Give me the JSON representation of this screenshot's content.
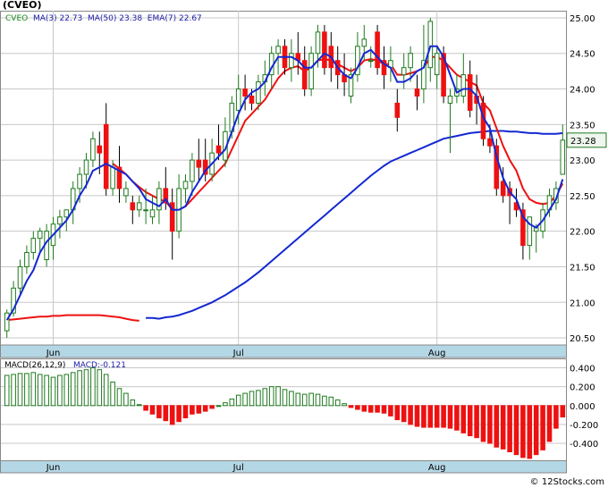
{
  "header": {
    "symbol_label": "(CVEO)",
    "legend_sym": "CVEO",
    "legend_ma3": "MA(3)",
    "legend_ma3_val": "22.73",
    "legend_ma50": "MA(50)",
    "legend_ma50_val": "23.38",
    "legend_ema7": "EMA(7)",
    "legend_ema7_val": "22.67",
    "macd_label": "MACD(26,12,9)",
    "macd_value": "MACD:-0.121",
    "last_price": "23.28",
    "copyright": "© 12Stocks.com"
  },
  "chart_data": [
    {
      "type": "candlestick",
      "ylim": [
        20.4,
        25.1
      ],
      "y_ticks": [
        "25.00",
        "24.50",
        "24.00",
        "23.50",
        "23.00",
        "22.50",
        "22.00",
        "21.50",
        "21.00",
        "20.50"
      ],
      "x_tick_labels": [
        "Jun",
        "Jul",
        "Aug"
      ],
      "x_tick_index": [
        7,
        35,
        65
      ],
      "colors": {
        "up": "#ffffff",
        "up_stroke": "#1f7a1f",
        "down": "#ee1111",
        "ma_short": "#1428d2",
        "ema": "#ee1111",
        "ma50": "#1428d2",
        "grid": "#c8c8c8",
        "band": "#b4d7e6"
      },
      "candles": [
        [
          20.6,
          20.9,
          20.5,
          20.85
        ],
        [
          20.85,
          21.3,
          20.8,
          21.2
        ],
        [
          21.2,
          21.6,
          21.1,
          21.5
        ],
        [
          21.5,
          21.8,
          21.4,
          21.7
        ],
        [
          21.7,
          22.0,
          21.6,
          21.9
        ],
        [
          21.9,
          22.05,
          21.7,
          22.0
        ],
        [
          21.6,
          22.1,
          21.5,
          22.0
        ],
        [
          21.8,
          22.2,
          21.6,
          22.1
        ],
        [
          22.1,
          22.3,
          21.9,
          22.2
        ],
        [
          22.2,
          22.3,
          22.0,
          22.3
        ],
        [
          22.3,
          22.7,
          22.1,
          22.6
        ],
        [
          22.6,
          22.9,
          22.4,
          22.8
        ],
        [
          22.8,
          23.1,
          22.6,
          23.0
        ],
        [
          23.0,
          23.4,
          22.9,
          23.3
        ],
        [
          23.2,
          23.4,
          22.8,
          23.1
        ],
        [
          23.5,
          23.8,
          22.5,
          22.6
        ],
        [
          22.6,
          23.0,
          22.5,
          22.9
        ],
        [
          22.9,
          23.2,
          22.4,
          22.6
        ],
        [
          22.5,
          22.7,
          22.4,
          22.6
        ],
        [
          22.4,
          22.5,
          22.1,
          22.3
        ],
        [
          22.3,
          22.5,
          22.2,
          22.4
        ],
        [
          22.3,
          22.6,
          22.1,
          22.3
        ],
        [
          22.2,
          22.5,
          22.1,
          22.3
        ],
        [
          22.3,
          22.7,
          22.1,
          22.6
        ],
        [
          22.6,
          22.9,
          22.3,
          22.4
        ],
        [
          22.4,
          22.6,
          21.6,
          22.0
        ],
        [
          22.0,
          22.8,
          21.9,
          22.6
        ],
        [
          22.6,
          22.8,
          22.4,
          22.7
        ],
        [
          22.7,
          23.1,
          22.5,
          23.0
        ],
        [
          23.0,
          23.3,
          22.7,
          22.9
        ],
        [
          23.0,
          23.3,
          22.7,
          22.8
        ],
        [
          22.8,
          23.3,
          22.7,
          23.1
        ],
        [
          23.2,
          23.5,
          23.0,
          23.1
        ],
        [
          23.0,
          23.6,
          22.9,
          23.4
        ],
        [
          23.4,
          23.9,
          23.3,
          23.8
        ],
        [
          23.7,
          24.2,
          23.5,
          24.0
        ],
        [
          24.0,
          24.2,
          23.7,
          23.9
        ],
        [
          23.9,
          24.0,
          23.7,
          23.8
        ],
        [
          23.8,
          24.2,
          23.7,
          24.1
        ],
        [
          24.1,
          24.4,
          23.9,
          24.2
        ],
        [
          24.2,
          24.6,
          24.0,
          24.5
        ],
        [
          24.5,
          24.7,
          24.2,
          24.6
        ],
        [
          24.6,
          24.7,
          24.2,
          24.3
        ],
        [
          24.3,
          24.7,
          24.1,
          24.5
        ],
        [
          24.5,
          24.8,
          24.2,
          24.4
        ],
        [
          24.4,
          24.6,
          23.9,
          24.0
        ],
        [
          24.0,
          24.6,
          23.9,
          24.5
        ],
        [
          24.5,
          24.9,
          24.3,
          24.8
        ],
        [
          24.8,
          24.9,
          24.2,
          24.3
        ],
        [
          24.6,
          24.8,
          24.1,
          24.3
        ],
        [
          24.4,
          24.6,
          24.0,
          24.2
        ],
        [
          24.2,
          24.5,
          23.9,
          24.1
        ],
        [
          23.9,
          24.3,
          23.8,
          24.2
        ],
        [
          24.2,
          24.8,
          24.1,
          24.6
        ],
        [
          24.6,
          24.9,
          24.4,
          24.7
        ],
        [
          24.4,
          24.6,
          24.3,
          24.4
        ],
        [
          24.8,
          24.9,
          24.2,
          24.3
        ],
        [
          24.4,
          24.6,
          24.0,
          24.2
        ],
        [
          24.3,
          24.6,
          24.1,
          24.4
        ],
        [
          23.8,
          24.0,
          23.4,
          23.6
        ],
        [
          24.2,
          24.5,
          24.0,
          24.3
        ],
        [
          24.3,
          24.6,
          24.1,
          24.5
        ],
        [
          24.0,
          24.2,
          23.7,
          23.9
        ],
        [
          24.0,
          24.9,
          23.8,
          24.4
        ],
        [
          24.3,
          25.0,
          24.1,
          24.95
        ],
        [
          24.2,
          24.6,
          24.0,
          24.5
        ],
        [
          24.5,
          24.6,
          23.8,
          23.9
        ],
        [
          23.8,
          24.0,
          23.1,
          23.9
        ],
        [
          23.9,
          24.2,
          23.8,
          24.0
        ],
        [
          23.9,
          24.5,
          23.8,
          24.2
        ],
        [
          24.2,
          24.4,
          23.6,
          23.7
        ],
        [
          23.9,
          24.2,
          23.5,
          23.8
        ],
        [
          23.8,
          23.9,
          23.2,
          23.3
        ],
        [
          23.3,
          23.5,
          23.1,
          23.2
        ],
        [
          23.2,
          23.3,
          22.5,
          22.6
        ],
        [
          22.7,
          22.9,
          22.4,
          22.5
        ],
        [
          22.6,
          22.7,
          22.1,
          22.5
        ],
        [
          22.4,
          22.6,
          22.2,
          22.3
        ],
        [
          22.3,
          22.4,
          21.6,
          21.8
        ],
        [
          21.8,
          22.2,
          21.6,
          22.2
        ],
        [
          22.0,
          22.1,
          21.7,
          22.05
        ],
        [
          22.0,
          22.4,
          21.9,
          22.3
        ],
        [
          22.3,
          22.6,
          22.2,
          22.5
        ],
        [
          22.4,
          22.7,
          22.3,
          22.6
        ],
        [
          22.8,
          23.5,
          22.8,
          23.28
        ]
      ],
      "ma3": [
        20.75,
        20.9,
        21.1,
        21.3,
        21.45,
        21.7,
        21.85,
        21.95,
        22.05,
        22.15,
        22.3,
        22.5,
        22.65,
        22.85,
        22.9,
        22.95,
        22.9,
        22.85,
        22.8,
        22.7,
        22.6,
        22.45,
        22.4,
        22.35,
        22.45,
        22.3,
        22.3,
        22.35,
        22.55,
        22.7,
        22.85,
        22.95,
        23.05,
        23.15,
        23.4,
        23.65,
        23.85,
        23.95,
        24.0,
        24.1,
        24.3,
        24.45,
        24.45,
        24.45,
        24.4,
        24.3,
        24.3,
        24.4,
        24.5,
        24.45,
        24.3,
        24.2,
        24.15,
        24.3,
        24.5,
        24.55,
        24.45,
        24.35,
        24.3,
        24.1,
        24.1,
        24.15,
        24.25,
        24.3,
        24.6,
        24.6,
        24.45,
        24.2,
        23.95,
        24.0,
        24.0,
        23.9,
        23.6,
        23.45,
        23.05,
        22.75,
        22.55,
        22.45,
        22.2,
        22.1,
        22.05,
        22.15,
        22.3,
        22.45,
        22.73
      ],
      "ema7": [
        null,
        null,
        null,
        null,
        null,
        null,
        null,
        null,
        null,
        null,
        null,
        null,
        null,
        null,
        null,
        null,
        22.95,
        22.88,
        22.8,
        22.7,
        22.62,
        22.55,
        22.5,
        22.45,
        22.42,
        22.3,
        22.3,
        22.35,
        22.45,
        22.55,
        22.65,
        22.75,
        22.85,
        22.95,
        23.15,
        23.35,
        23.55,
        23.65,
        23.75,
        23.85,
        24.0,
        24.15,
        24.25,
        24.3,
        24.32,
        24.25,
        24.3,
        24.4,
        24.42,
        24.4,
        24.35,
        24.3,
        24.25,
        24.3,
        24.4,
        24.42,
        24.4,
        24.35,
        24.35,
        24.2,
        24.2,
        24.22,
        24.25,
        24.3,
        24.45,
        24.45,
        24.4,
        24.3,
        24.2,
        24.15,
        24.1,
        24.05,
        23.8,
        23.7,
        23.45,
        23.2,
        23.0,
        22.85,
        22.6,
        22.45,
        22.4,
        22.38,
        22.4,
        22.5,
        22.67
      ],
      "ma50": [
        null,
        null,
        null,
        null,
        null,
        null,
        null,
        null,
        null,
        null,
        null,
        null,
        null,
        null,
        null,
        null,
        null,
        null,
        null,
        null,
        null,
        20.78,
        20.78,
        20.77,
        20.79,
        20.8,
        20.82,
        20.85,
        20.88,
        20.92,
        20.96,
        21.0,
        21.05,
        21.1,
        21.16,
        21.22,
        21.28,
        21.35,
        21.42,
        21.5,
        21.58,
        21.66,
        21.74,
        21.82,
        21.9,
        21.98,
        22.06,
        22.14,
        22.22,
        22.3,
        22.38,
        22.46,
        22.54,
        22.62,
        22.7,
        22.78,
        22.85,
        22.92,
        22.98,
        23.02,
        23.06,
        23.1,
        23.14,
        23.18,
        23.22,
        23.26,
        23.3,
        23.32,
        23.34,
        23.36,
        23.38,
        23.39,
        23.4,
        23.41,
        23.41,
        23.41,
        23.4,
        23.4,
        23.39,
        23.38,
        23.38,
        23.37,
        23.37,
        23.37,
        23.38
      ],
      "ma50_early": [
        20.75,
        20.76,
        20.77,
        20.78,
        20.79,
        20.8,
        20.8,
        20.81,
        20.81,
        20.82,
        20.82,
        20.82,
        20.82,
        20.82,
        20.82,
        20.81,
        20.8,
        20.79,
        20.77,
        20.75,
        20.74
      ]
    },
    {
      "type": "bar",
      "title": "MACD(26,12,9)",
      "ylim": [
        -0.58,
        0.5
      ],
      "y_ticks": [
        "0.400",
        "0.200",
        "0.000",
        "-0.200",
        "-0.400"
      ],
      "values": [
        0.32,
        0.33,
        0.34,
        0.34,
        0.35,
        0.33,
        0.32,
        0.3,
        0.32,
        0.33,
        0.35,
        0.37,
        0.38,
        0.4,
        0.38,
        0.33,
        0.25,
        0.18,
        0.13,
        0.06,
        0.01,
        -0.05,
        -0.09,
        -0.13,
        -0.16,
        -0.2,
        -0.17,
        -0.13,
        -0.09,
        -0.08,
        -0.06,
        -0.03,
        0.0,
        0.03,
        0.07,
        0.11,
        0.13,
        0.15,
        0.16,
        0.18,
        0.2,
        0.2,
        0.17,
        0.15,
        0.13,
        0.12,
        0.13,
        0.12,
        0.1,
        0.09,
        0.06,
        0.02,
        -0.02,
        -0.04,
        -0.06,
        -0.07,
        -0.07,
        -0.08,
        -0.11,
        -0.15,
        -0.17,
        -0.2,
        -0.22,
        -0.23,
        -0.23,
        -0.23,
        -0.23,
        -0.24,
        -0.26,
        -0.29,
        -0.32,
        -0.34,
        -0.38,
        -0.4,
        -0.44,
        -0.46,
        -0.49,
        -0.52,
        -0.55,
        -0.56,
        -0.52,
        -0.47,
        -0.38,
        -0.24,
        -0.121
      ]
    }
  ]
}
